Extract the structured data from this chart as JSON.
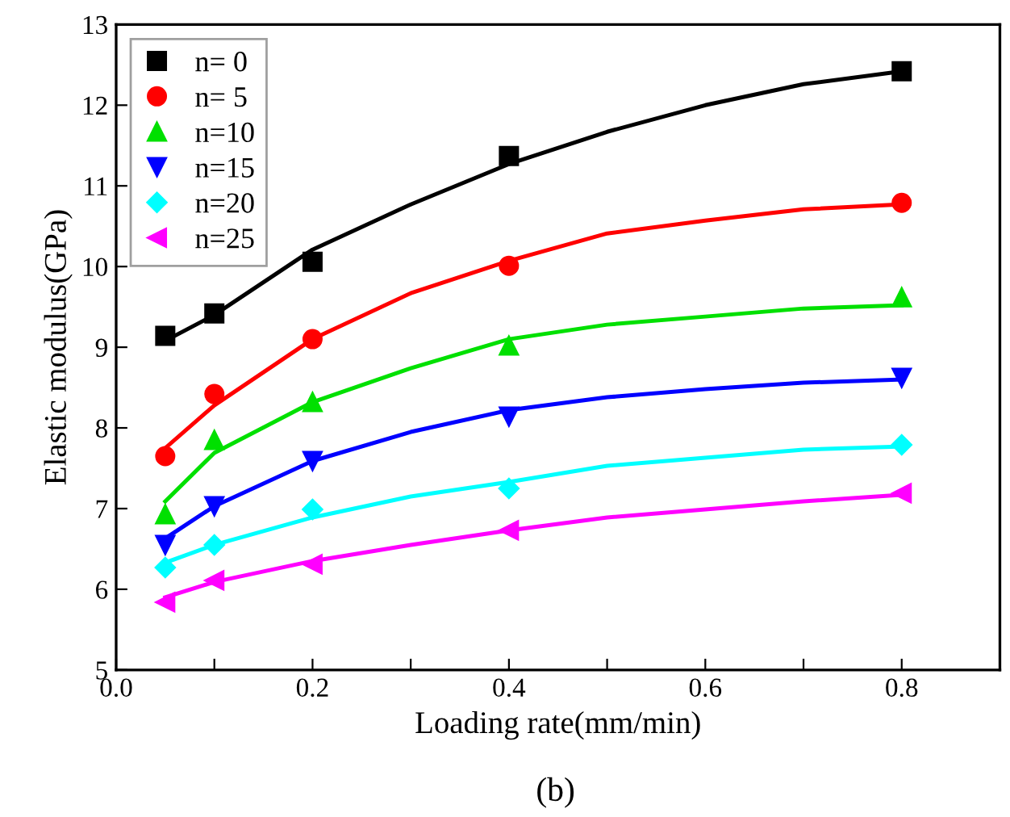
{
  "chart_data": {
    "type": "scatter",
    "xlabel": "Loading rate(mm/min)",
    "ylabel": "Elastic modulus(GPa)",
    "annotations": [
      "(b)"
    ],
    "xlim": [
      0.0,
      0.9
    ],
    "ylim": [
      5,
      13
    ],
    "xticks": [
      {
        "value": 0,
        "label": "0.0"
      },
      {
        "value": 0.1,
        "label": null
      },
      0.2,
      {
        "value": 0.3,
        "label": null
      },
      0.4,
      {
        "value": 0.5,
        "label": null
      },
      0.6,
      {
        "value": 0.7,
        "label": null
      },
      0.8
    ],
    "yticks": [
      5,
      6,
      7,
      8,
      9,
      10,
      11,
      12,
      13
    ],
    "grid": false,
    "legend": "top left",
    "series": [
      {
        "name": "n= 0",
        "marker": "square",
        "color": "#000000",
        "x": [
          0.05,
          0.1,
          0.2,
          0.4,
          0.8
        ],
        "values": [
          9.14,
          9.42,
          10.06,
          11.37,
          12.42
        ]
      },
      {
        "name": "n= 5",
        "marker": "circle",
        "color": "#ff0000",
        "x": [
          0.05,
          0.1,
          0.2,
          0.4,
          0.8
        ],
        "values": [
          7.65,
          8.42,
          9.1,
          10.01,
          10.79
        ]
      },
      {
        "name": "n=10",
        "marker": "triangle",
        "color": "#00e000",
        "x": [
          0.05,
          0.1,
          0.2,
          0.4,
          0.8
        ],
        "values": [
          6.93,
          7.85,
          8.32,
          9.02,
          9.62
        ]
      },
      {
        "name": "n=15",
        "marker": "triangle_down",
        "color": "#0000ff",
        "x": [
          0.05,
          0.1,
          0.2,
          0.4,
          0.8
        ],
        "values": [
          6.55,
          7.03,
          7.59,
          8.14,
          8.62
        ]
      },
      {
        "name": "n=20",
        "marker": "diamond",
        "color": "#00ffff",
        "x": [
          0.05,
          0.1,
          0.2,
          0.4,
          0.8
        ],
        "values": [
          6.27,
          6.55,
          6.99,
          7.25,
          7.79
        ]
      },
      {
        "name": "n=25",
        "marker": "triangle_left",
        "color": "#ff00ff",
        "x": [
          0.05,
          0.1,
          0.2,
          0.4,
          0.8
        ],
        "values": [
          5.84,
          6.11,
          6.31,
          6.73,
          7.19
        ]
      },
      {
        "type": "line",
        "color": "#000000",
        "x": [
          0.05,
          0.1,
          0.2,
          0.3,
          0.4,
          0.5,
          0.6,
          0.7,
          0.8
        ],
        "values": [
          9.08,
          9.4,
          10.21,
          10.77,
          11.27,
          11.67,
          12.0,
          12.26,
          12.42
        ]
      },
      {
        "type": "line",
        "color": "#ff0000",
        "x": [
          0.05,
          0.1,
          0.2,
          0.3,
          0.4,
          0.5,
          0.6,
          0.7,
          0.8
        ],
        "values": [
          7.75,
          8.28,
          9.1,
          9.67,
          10.07,
          10.41,
          10.57,
          10.71,
          10.77
        ]
      },
      {
        "type": "line",
        "color": "#00e000",
        "x": [
          0.05,
          0.1,
          0.2,
          0.3,
          0.4,
          0.5,
          0.6,
          0.7,
          0.8
        ],
        "values": [
          7.09,
          7.69,
          8.32,
          8.74,
          9.1,
          9.28,
          9.38,
          9.48,
          9.52
        ]
      },
      {
        "type": "line",
        "color": "#0000ff",
        "x": [
          0.05,
          0.1,
          0.2,
          0.3,
          0.4,
          0.5,
          0.6,
          0.7,
          0.8
        ],
        "values": [
          6.63,
          7.03,
          7.59,
          7.95,
          8.22,
          8.38,
          8.48,
          8.56,
          8.6
        ]
      },
      {
        "type": "line",
        "color": "#00ffff",
        "x": [
          0.05,
          0.1,
          0.2,
          0.3,
          0.4,
          0.5,
          0.6,
          0.7,
          0.8
        ],
        "values": [
          6.33,
          6.55,
          6.89,
          7.15,
          7.33,
          7.53,
          7.63,
          7.73,
          7.77
        ]
      },
      {
        "type": "line",
        "color": "#ff00ff",
        "x": [
          0.05,
          0.1,
          0.2,
          0.3,
          0.4,
          0.5,
          0.6,
          0.7,
          0.8
        ],
        "values": [
          5.9,
          6.09,
          6.35,
          6.55,
          6.73,
          6.89,
          6.99,
          7.09,
          7.17
        ]
      }
    ]
  }
}
